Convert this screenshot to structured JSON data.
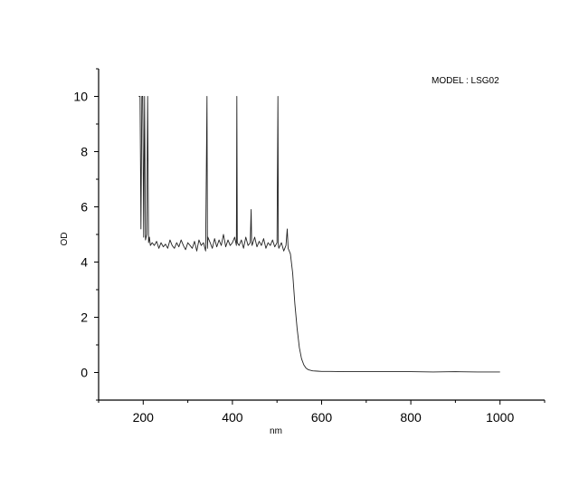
{
  "chart_data": {
    "type": "line",
    "title": "",
    "annotation": "MODEL : LSG02",
    "xlabel": "nm",
    "ylabel": "OD",
    "xlim": [
      100,
      1100
    ],
    "ylim": [
      -1,
      11
    ],
    "x_ticks": [
      200,
      400,
      600,
      800,
      1000
    ],
    "x_tick_labels": [
      "200",
      "400",
      "600",
      "800",
      "1000"
    ],
    "y_ticks": [
      0,
      2,
      4,
      6,
      8,
      10
    ],
    "y_tick_labels": [
      "0",
      "2",
      "4",
      "6",
      "8",
      "10"
    ],
    "grid": false,
    "legend": "none",
    "line_color": "#222222",
    "series": [
      {
        "x": [
          190,
          193,
          195,
          197,
          199,
          201,
          203,
          205,
          208,
          210,
          212,
          214,
          216,
          220,
          225,
          230,
          235,
          240,
          245,
          250,
          255,
          260,
          265,
          270,
          275,
          280,
          285,
          290,
          295,
          300,
          305,
          310,
          315,
          320,
          325,
          330,
          335,
          340,
          343,
          344,
          345,
          350,
          355,
          360,
          365,
          370,
          375,
          380,
          385,
          390,
          395,
          400,
          405,
          409,
          410,
          411,
          415,
          420,
          425,
          430,
          435,
          440,
          442,
          443,
          444,
          450,
          455,
          460,
          465,
          470,
          475,
          480,
          485,
          490,
          495,
          500,
          502,
          503,
          504,
          510,
          515,
          520,
          523,
          525,
          530,
          535,
          540,
          545,
          550,
          555,
          560,
          565,
          570,
          575,
          580,
          590,
          600,
          620,
          650,
          700,
          750,
          800,
          850,
          900,
          950,
          1000
        ],
        "y": [
          10,
          10,
          5.2,
          10,
          10,
          4.9,
          10,
          4.8,
          5.0,
          10,
          4.7,
          4.9,
          4.6,
          4.7,
          4.6,
          4.75,
          4.5,
          4.7,
          4.55,
          4.65,
          4.5,
          4.8,
          4.6,
          4.5,
          4.7,
          4.55,
          4.8,
          4.6,
          4.45,
          4.7,
          4.6,
          4.5,
          4.75,
          4.4,
          4.8,
          4.6,
          4.7,
          4.4,
          10,
          4.5,
          4.9,
          4.7,
          4.5,
          4.85,
          4.55,
          4.8,
          4.6,
          5.0,
          4.55,
          4.8,
          4.6,
          4.7,
          4.9,
          4.6,
          10,
          4.7,
          4.6,
          4.8,
          4.5,
          4.9,
          4.6,
          4.7,
          5.9,
          4.8,
          4.6,
          4.9,
          4.55,
          4.75,
          4.6,
          4.85,
          4.5,
          4.7,
          4.6,
          4.8,
          4.55,
          4.7,
          10,
          4.6,
          4.5,
          4.7,
          4.4,
          4.6,
          5.2,
          4.5,
          4.3,
          3.6,
          2.5,
          1.6,
          0.9,
          0.5,
          0.28,
          0.16,
          0.1,
          0.08,
          0.06,
          0.05,
          0.04,
          0.04,
          0.03,
          0.03,
          0.03,
          0.03,
          0.02,
          0.03,
          0.02,
          0.02
        ]
      }
    ]
  }
}
